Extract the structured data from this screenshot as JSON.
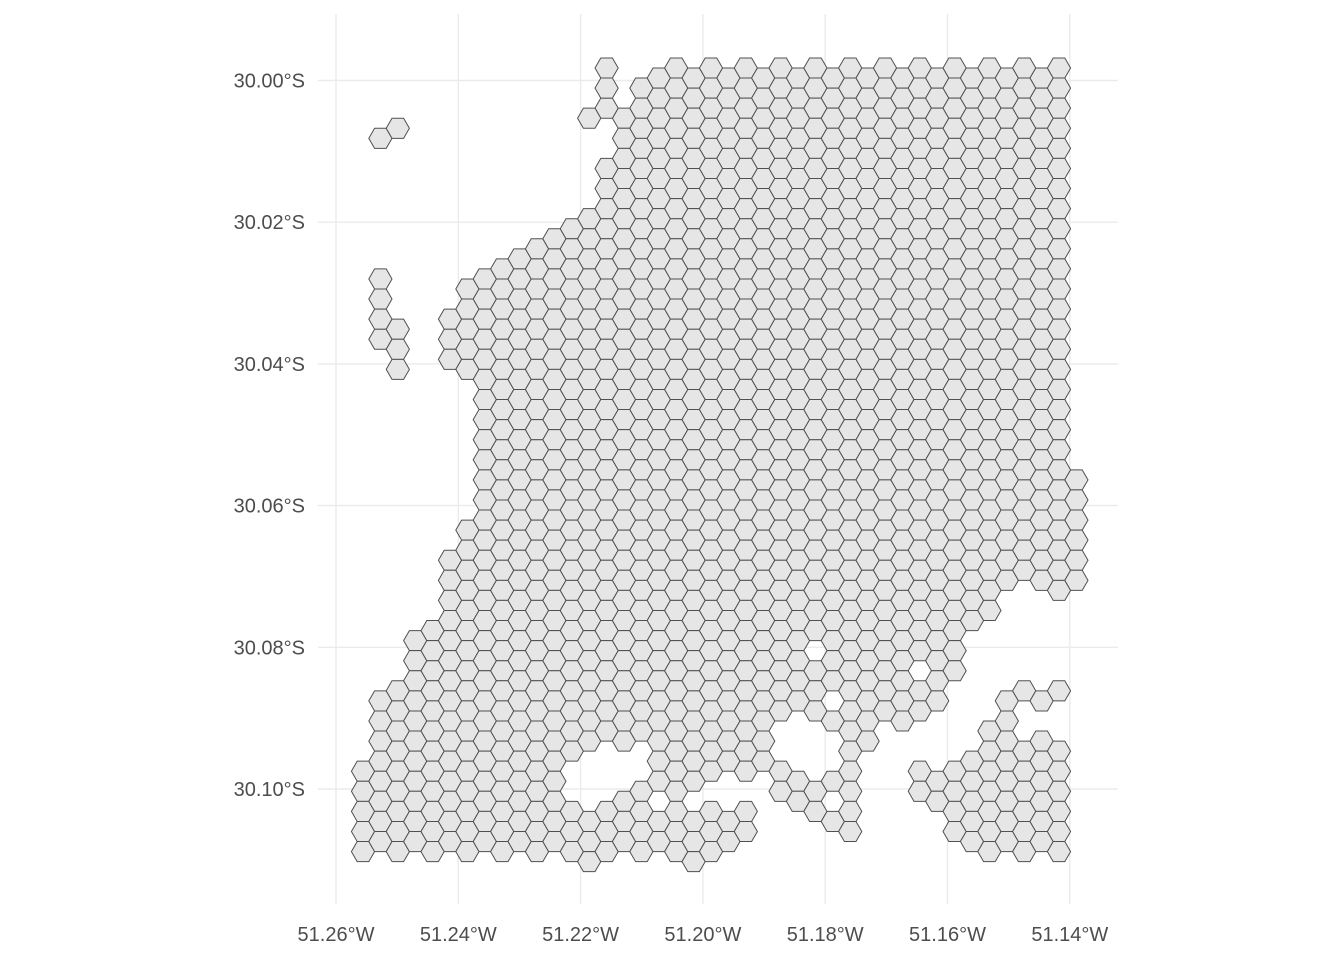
{
  "map": {
    "type": "hexagonal grid map",
    "fill_color": "#e6e6e6",
    "stroke_color": "#505050",
    "grid_color": "#ebebeb",
    "x_range_deg_w": [
      51.2598,
      51.1398
    ],
    "y_range_deg_s": [
      30.0,
      30.1
    ]
  },
  "axes": {
    "x_ticks": [
      {
        "value": 51.26,
        "label": "51.26°W"
      },
      {
        "value": 51.24,
        "label": "51.24°W"
      },
      {
        "value": 51.22,
        "label": "51.22°W"
      },
      {
        "value": 51.2,
        "label": "51.20°W"
      },
      {
        "value": 51.18,
        "label": "51.18°W"
      },
      {
        "value": 51.16,
        "label": "51.16°W"
      },
      {
        "value": 51.14,
        "label": "51.14°W"
      }
    ],
    "y_ticks": [
      {
        "value": 30.0,
        "label": "30.00°S"
      },
      {
        "value": 30.02,
        "label": "30.02°S"
      },
      {
        "value": 30.04,
        "label": "30.04°S"
      },
      {
        "value": 30.06,
        "label": "30.06°S"
      },
      {
        "value": 30.08,
        "label": "30.08°S"
      },
      {
        "value": 30.1,
        "label": "30.10°S"
      }
    ]
  }
}
